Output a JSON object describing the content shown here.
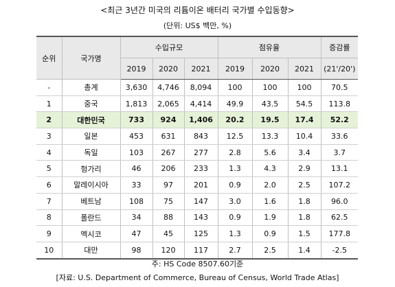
{
  "title": "<최근 3년간 미국의 리튬이온 배터리 국가별 수입동향>",
  "unit": "(단위: US$ 백만, %)",
  "headers": {
    "rank": "순위",
    "country": "국가명",
    "import_scale": "수입규모",
    "share": "점유율",
    "growth": "증감률",
    "years": [
      "2019",
      "2020",
      "2021"
    ],
    "growth_period": "(21'/20')"
  },
  "rows": [
    {
      "rank": "-",
      "country": "총계",
      "imp": [
        "3,630",
        "4,746",
        "8,094"
      ],
      "share": [
        "100",
        "100",
        "100"
      ],
      "growth": "70.5"
    },
    {
      "rank": "1",
      "country": "중국",
      "imp": [
        "1,813",
        "2,065",
        "4,414"
      ],
      "share": [
        "49.9",
        "43.5",
        "54.5"
      ],
      "growth": "113.8"
    },
    {
      "rank": "2",
      "country": "대한민국",
      "imp": [
        "733",
        "924",
        "1,406"
      ],
      "share": [
        "20.2",
        "19.5",
        "17.4"
      ],
      "growth": "52.2"
    },
    {
      "rank": "3",
      "country": "일본",
      "imp": [
        "453",
        "631",
        "843"
      ],
      "share": [
        "12.5",
        "13.3",
        "10.4"
      ],
      "growth": "33.6"
    },
    {
      "rank": "4",
      "country": "독일",
      "imp": [
        "103",
        "267",
        "277"
      ],
      "share": [
        "2.8",
        "5.6",
        "3.4"
      ],
      "growth": "3.7"
    },
    {
      "rank": "5",
      "country": "헝가리",
      "imp": [
        "46",
        "206",
        "233"
      ],
      "share": [
        "1.3",
        "4.3",
        "2.9"
      ],
      "growth": "13.1"
    },
    {
      "rank": "6",
      "country": "말레이시아",
      "imp": [
        "33",
        "97",
        "201"
      ],
      "share": [
        "0.9",
        "2.0",
        "2.5"
      ],
      "growth": "107.2"
    },
    {
      "rank": "7",
      "country": "베트남",
      "imp": [
        "108",
        "75",
        "147"
      ],
      "share": [
        "3.0",
        "1.6",
        "1.8"
      ],
      "growth": "96.0"
    },
    {
      "rank": "8",
      "country": "폴란드",
      "imp": [
        "34",
        "88",
        "143"
      ],
      "share": [
        "0.9",
        "1.9",
        "1.8"
      ],
      "growth": "62.5"
    },
    {
      "rank": "9",
      "country": "멕시코",
      "imp": [
        "47",
        "45",
        "125"
      ],
      "share": [
        "1.3",
        "0.9",
        "1.5"
      ],
      "growth": "177.8"
    },
    {
      "rank": "10",
      "country": "대만",
      "imp": [
        "98",
        "120",
        "117"
      ],
      "share": [
        "2.7",
        "2.5",
        "1.4"
      ],
      "growth": "-2.5"
    }
  ],
  "highlight_color": "#e6f2d8",
  "header_bg": "#e9e9e9",
  "footnote": "주: HS Code 8507.60기준",
  "source": "[자료: U.S. Department of Commerce, Bureau of Census, World Trade Atlas]"
}
